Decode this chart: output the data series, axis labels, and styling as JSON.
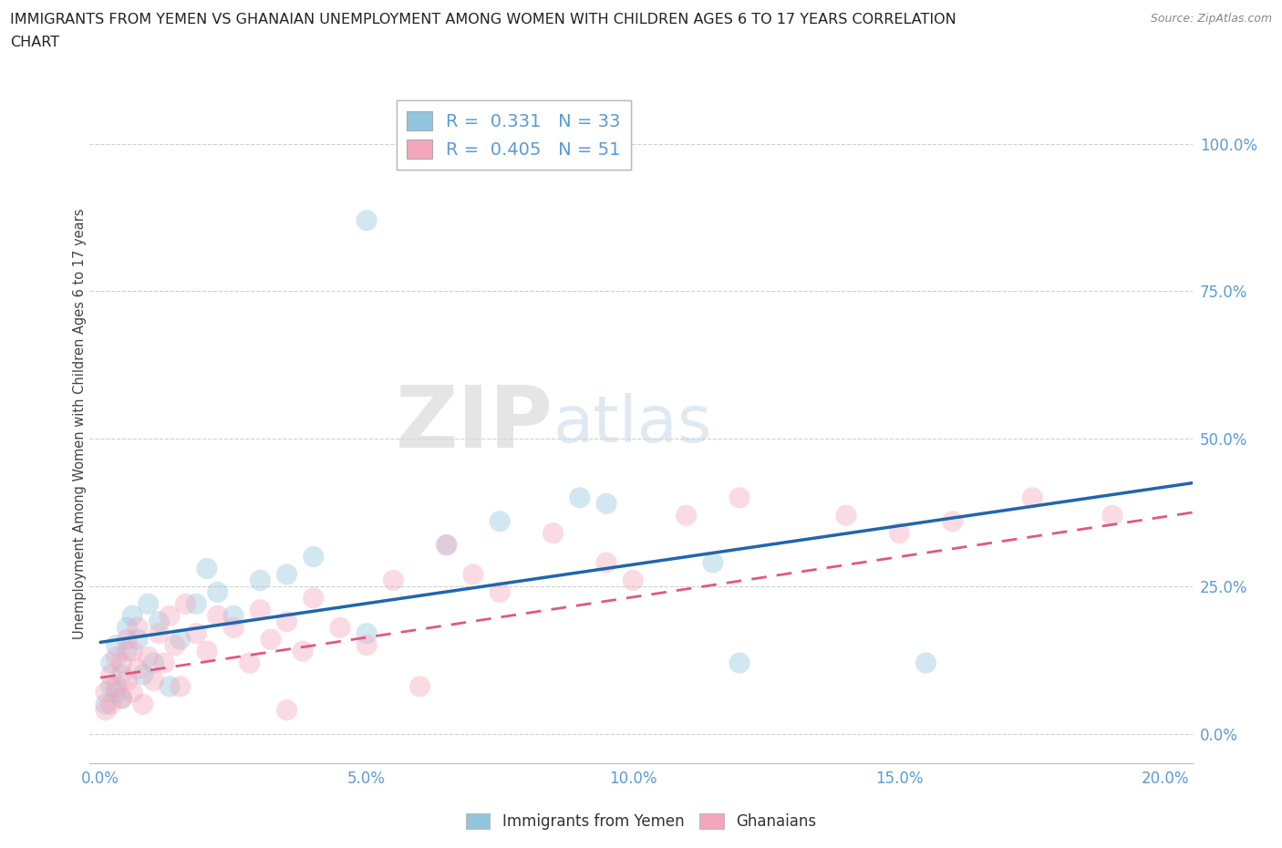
{
  "title_line1": "IMMIGRANTS FROM YEMEN VS GHANAIAN UNEMPLOYMENT AMONG WOMEN WITH CHILDREN AGES 6 TO 17 YEARS CORRELATION",
  "title_line2": "CHART",
  "source": "Source: ZipAtlas.com",
  "ylabel_label": "Unemployment Among Women with Children Ages 6 to 17 years",
  "xlim": [
    -0.002,
    0.205
  ],
  "ylim": [
    -0.05,
    1.1
  ],
  "xlabel_tick_vals": [
    0.0,
    0.05,
    0.1,
    0.15,
    0.2
  ],
  "xlabel_ticks": [
    "0.0%",
    "5.0%",
    "10.0%",
    "15.0%",
    "20.0%"
  ],
  "ylabel_tick_vals": [
    0.0,
    0.25,
    0.5,
    0.75,
    1.0
  ],
  "ylabel_ticks": [
    "0.0%",
    "25.0%",
    "50.0%",
    "75.0%",
    "100.0%"
  ],
  "legend1_r": "0.331",
  "legend1_n": "33",
  "legend2_r": "0.405",
  "legend2_n": "51",
  "legend_label1": "Immigrants from Yemen",
  "legend_label2": "Ghanaians",
  "blue_fill": "#92c5de",
  "pink_fill": "#f4a6bc",
  "blue_line": "#2166ac",
  "pink_line": "#e05880",
  "tick_color": "#5b9bd5",
  "legend_r_color": "#5b9bd5",
  "grid_color": "#d0d0d0",
  "bg_color": "#ffffff",
  "blue_x": [
    0.001,
    0.002,
    0.002,
    0.003,
    0.003,
    0.004,
    0.004,
    0.005,
    0.005,
    0.006,
    0.007,
    0.008,
    0.009,
    0.01,
    0.011,
    0.013,
    0.015,
    0.018,
    0.02,
    0.022,
    0.025,
    0.03,
    0.035,
    0.04,
    0.05,
    0.065,
    0.075,
    0.09,
    0.095,
    0.115,
    0.12,
    0.155,
    0.05
  ],
  "blue_y": [
    0.05,
    0.08,
    0.12,
    0.07,
    0.15,
    0.1,
    0.06,
    0.14,
    0.18,
    0.2,
    0.16,
    0.1,
    0.22,
    0.12,
    0.19,
    0.08,
    0.16,
    0.22,
    0.28,
    0.24,
    0.2,
    0.26,
    0.27,
    0.3,
    0.17,
    0.32,
    0.36,
    0.4,
    0.39,
    0.29,
    0.12,
    0.12,
    0.87
  ],
  "pink_x": [
    0.001,
    0.001,
    0.002,
    0.002,
    0.003,
    0.003,
    0.004,
    0.004,
    0.005,
    0.005,
    0.006,
    0.006,
    0.007,
    0.007,
    0.008,
    0.009,
    0.01,
    0.011,
    0.012,
    0.013,
    0.014,
    0.015,
    0.016,
    0.018,
    0.02,
    0.022,
    0.025,
    0.028,
    0.03,
    0.032,
    0.035,
    0.038,
    0.04,
    0.045,
    0.05,
    0.055,
    0.065,
    0.07,
    0.075,
    0.085,
    0.095,
    0.1,
    0.11,
    0.12,
    0.14,
    0.15,
    0.16,
    0.175,
    0.19,
    0.035,
    0.06
  ],
  "pink_y": [
    0.04,
    0.07,
    0.05,
    0.1,
    0.08,
    0.13,
    0.06,
    0.12,
    0.09,
    0.16,
    0.07,
    0.14,
    0.11,
    0.18,
    0.05,
    0.13,
    0.09,
    0.17,
    0.12,
    0.2,
    0.15,
    0.08,
    0.22,
    0.17,
    0.14,
    0.2,
    0.18,
    0.12,
    0.21,
    0.16,
    0.19,
    0.14,
    0.23,
    0.18,
    0.15,
    0.26,
    0.32,
    0.27,
    0.24,
    0.34,
    0.29,
    0.26,
    0.37,
    0.4,
    0.37,
    0.34,
    0.36,
    0.4,
    0.37,
    0.04,
    0.08
  ],
  "blue_trend_x0": 0.0,
  "blue_trend_x1": 0.205,
  "blue_trend_y0": 0.155,
  "blue_trend_y1": 0.425,
  "pink_trend_x0": 0.0,
  "pink_trend_x1": 0.205,
  "pink_trend_y0": 0.095,
  "pink_trend_y1": 0.375
}
